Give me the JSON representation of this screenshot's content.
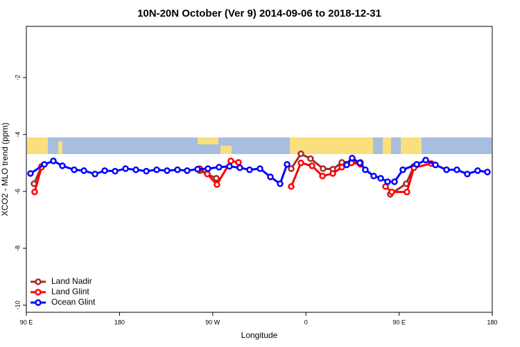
{
  "chart_data": {
    "type": "line",
    "title": "10N-20N October (Ver 9)   2014-09-06 to 2018-12-31",
    "x_label": "Longitude",
    "y_label": "XCO2 - MLO trend (ppm)",
    "xlim": [
      90,
      540
    ],
    "ylim": [
      -10.25,
      -0.2
    ],
    "xticks": [
      {
        "value": 90,
        "label": "90 E"
      },
      180,
      {
        "value": 270,
        "label": "90 W"
      },
      {
        "value": 360,
        "label": "0"
      },
      {
        "value": 450,
        "label": "90 E"
      },
      {
        "value": 540,
        "label": "180"
      }
    ],
    "yticks": [
      -2,
      -4,
      -6,
      -8,
      -10
    ],
    "legend": "bottom-left",
    "series": [
      {
        "name": "Land Nadir",
        "color": "#a52a2a",
        "x": [
          97.4,
          104.7,
          null,
          257.4,
          273.5,
          null,
          345.8,
          355.2,
          364.5,
          376.6,
          386.0,
          394.7,
          404.0,
          412.7,
          null,
          441.5,
          456.9,
          464.3
        ],
        "values": [
          -5.73,
          -5.12,
          null,
          -5.27,
          -5.54,
          null,
          -5.2,
          -4.68,
          -4.85,
          -5.2,
          -5.22,
          -4.98,
          -4.95,
          -4.98,
          null,
          -6.1,
          -5.73,
          -5.12
        ]
      },
      {
        "name": "Land Glint",
        "color": "#ff0000",
        "x": [
          98.0,
          104.7,
          null,
          257.4,
          264.8,
          274.1,
          287.5,
          294.9,
          null,
          345.8,
          355.2,
          365.9,
          376.0,
          386.0,
          394.7,
          404.0,
          412.7,
          null,
          436.9,
          442.9,
          457.6,
          464.3,
          481.1
        ],
        "values": [
          -6.02,
          -5.15,
          null,
          -5.2,
          -5.39,
          -5.76,
          -4.93,
          -4.98,
          null,
          -5.83,
          -5.0,
          -5.1,
          -5.46,
          -5.37,
          -5.15,
          -5.0,
          -5.05,
          null,
          -5.83,
          -6.02,
          -6.02,
          -5.17,
          -5.02
        ]
      },
      {
        "name": "Ocean Glint",
        "color": "#0000ff",
        "x": [
          94.0,
          107.4,
          116.1,
          124.8,
          136.2,
          145.6,
          156.3,
          165.7,
          175.7,
          185.8,
          195.8,
          205.9,
          215.9,
          225.9,
          236.0,
          245.3,
          255.4,
          265.4,
          276.1,
          286.2,
          296.2,
          305.6,
          315.7,
          325.7,
          335.1,
          341.8,
          null,
          399.4,
          404.7,
          412.1,
          417.4,
          425.5,
          432.2,
          438.9,
          445.6,
          453.6,
          467.0,
          475.7,
          485.1,
          495.8,
          505.8,
          515.9,
          525.9,
          535.3
        ],
        "values": [
          -5.37,
          -5.05,
          -4.93,
          -5.1,
          -5.24,
          -5.27,
          -5.39,
          -5.27,
          -5.29,
          -5.2,
          -5.24,
          -5.29,
          -5.24,
          -5.27,
          -5.24,
          -5.27,
          -5.22,
          -5.2,
          -5.15,
          -5.12,
          -5.17,
          -5.24,
          -5.2,
          -5.49,
          -5.73,
          -5.05,
          null,
          -5.07,
          -4.83,
          -5.0,
          -5.24,
          -5.46,
          -5.54,
          -5.66,
          -5.66,
          -5.24,
          -5.05,
          -4.9,
          -5.07,
          -5.24,
          -5.24,
          -5.39,
          -5.27,
          -5.32
        ]
      }
    ]
  }
}
